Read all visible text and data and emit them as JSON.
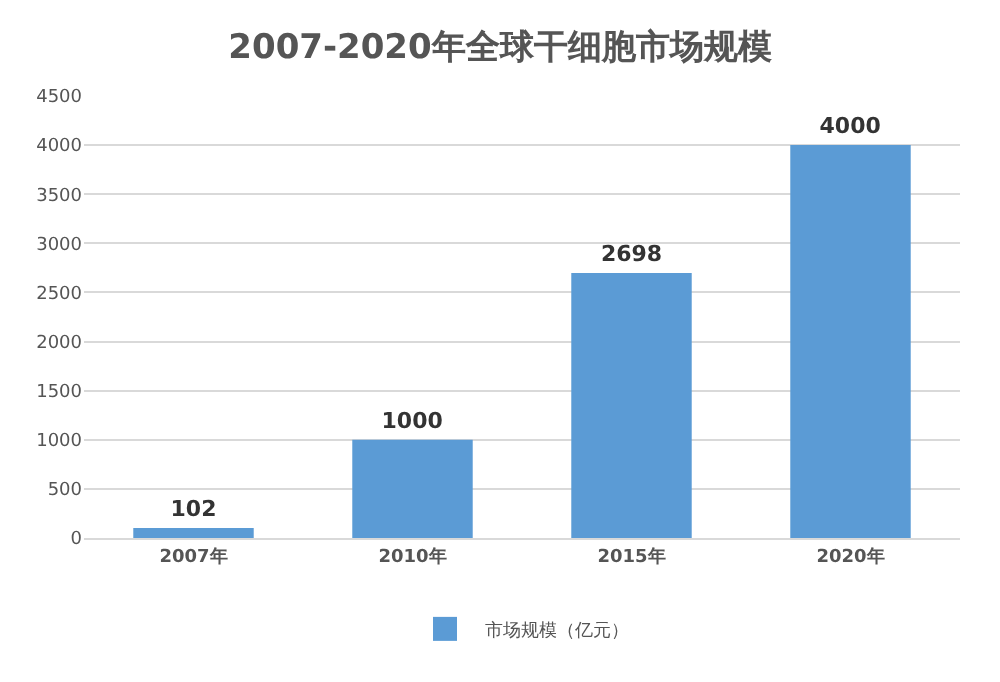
{
  "chart_data": {
    "type": "bar",
    "title": "2007-2020年全球干细胞市场规模",
    "categories": [
      "2007年",
      "2010年",
      "2015年",
      "2020年"
    ],
    "series": [
      {
        "name": "市场规模（亿元）",
        "color": "#5b9bd5",
        "values": [
          102,
          1000,
          2698,
          4000
        ]
      }
    ],
    "ylim": [
      0,
      4500
    ],
    "yticks": [
      0,
      500,
      1000,
      1500,
      2000,
      2500,
      3000,
      3500,
      4000,
      4500
    ],
    "grid": "y",
    "legend": "bottom",
    "data_labels": true
  }
}
